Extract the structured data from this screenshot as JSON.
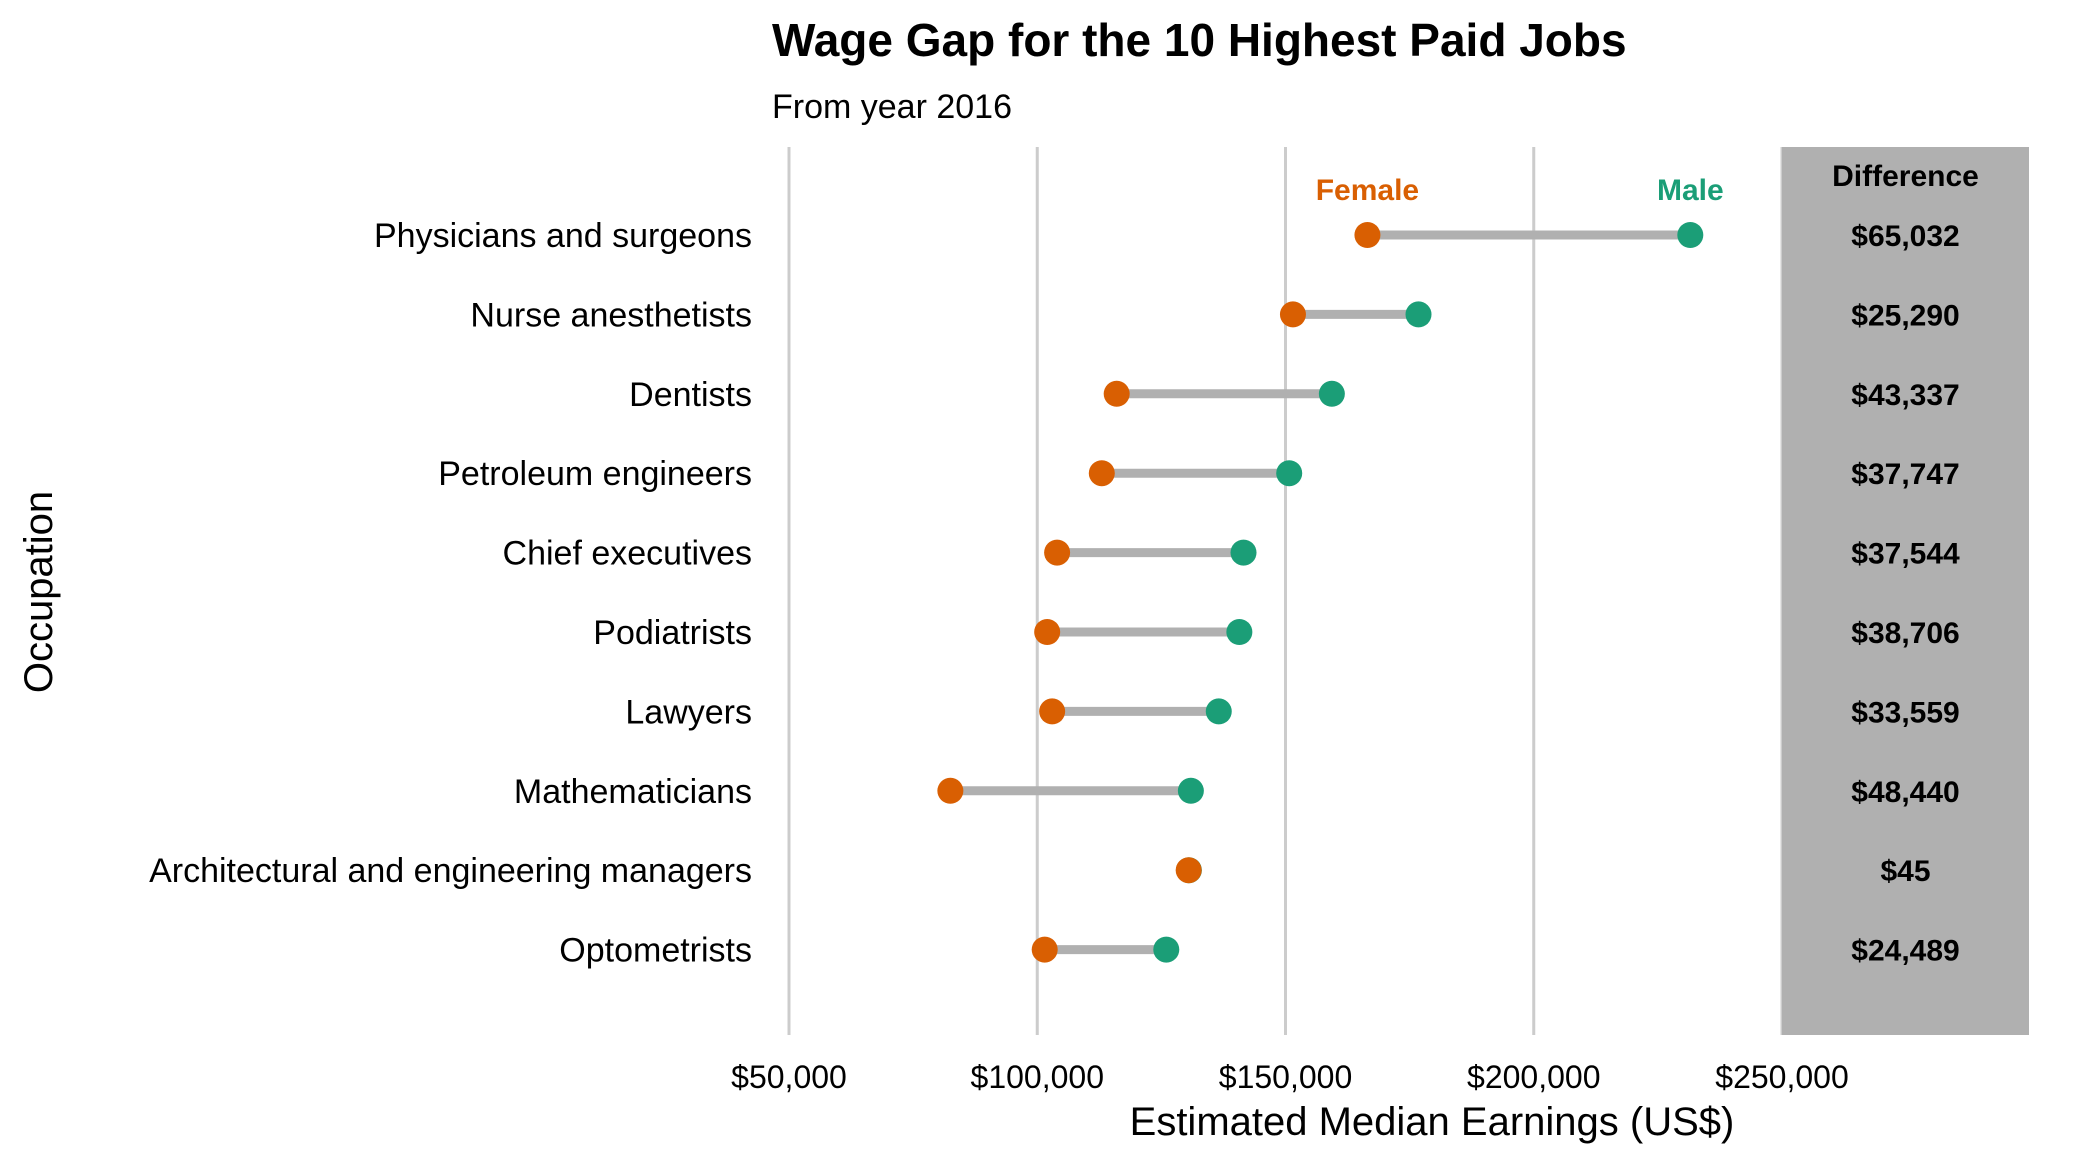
{
  "chart_data": {
    "type": "dumbbell",
    "title": "Wage Gap for the 10 Highest Paid Jobs",
    "subtitle": "From year 2016",
    "xlabel": "Estimated Median Earnings (US$)",
    "ylabel": "Occupation",
    "xlim": [
      50000,
      250000
    ],
    "x_ticks": [
      50000,
      100000,
      150000,
      200000,
      250000
    ],
    "x_tick_labels": [
      "$50,000",
      "$100,000",
      "$150,000",
      "$200,000",
      "$250,000"
    ],
    "grid": "vertical",
    "categories": [
      "Physicians and surgeons",
      "Nurse anesthetists",
      "Dentists",
      "Petroleum engineers",
      "Chief executives",
      "Podiatrists",
      "Lawyers",
      "Mathematicians",
      "Architectural and engineering managers",
      "Optometrists"
    ],
    "series": [
      {
        "name": "Female",
        "color": "#d95f02",
        "values": [
          166500,
          151500,
          116000,
          113000,
          104000,
          102000,
          103000,
          82500,
          130500,
          101500
        ]
      },
      {
        "name": "Male",
        "color": "#1b9e77",
        "values": [
          231532,
          176790,
          159337,
          150747,
          141544,
          140706,
          136559,
          130940,
          130545,
          125989
        ]
      }
    ],
    "difference_header": "Difference",
    "difference_labels": [
      "$65,032",
      "$25,290",
      "$43,337",
      "$37,747",
      "$37,544",
      "$38,706",
      "$33,559",
      "$48,440",
      "$45",
      "$24,489"
    ],
    "connector_color": "#b0b0b0",
    "difference_panel_color": "#b0b0b0",
    "gridline_color": "#cccccc"
  }
}
